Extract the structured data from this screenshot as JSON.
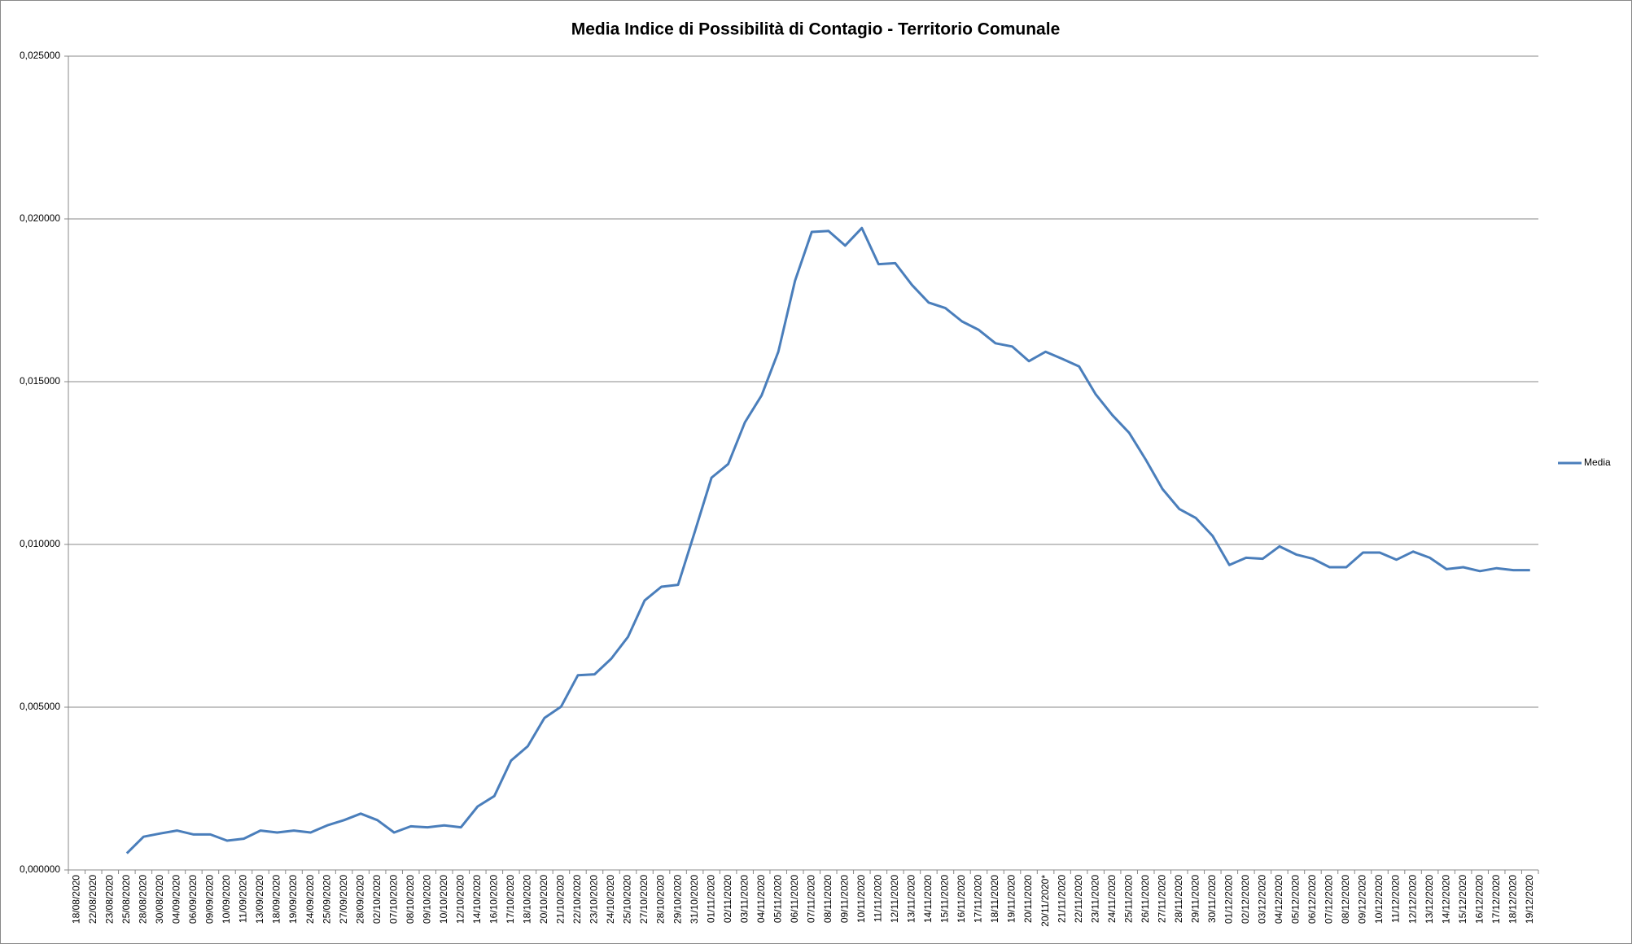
{
  "chart_data": {
    "type": "line",
    "title": "Media Indice di Possibilità di Contagio - Territorio Comunale",
    "categories": [
      "18/08/2020",
      "22/08/2020",
      "23/08/2020",
      "25/08/2020",
      "28/08/2020",
      "30/08/2020",
      "04/09/2020",
      "06/09/2020",
      "09/09/2020",
      "10/09/2020",
      "11/09/2020",
      "13/09/2020",
      "18/09/2020",
      "19/09/2020",
      "24/09/2020",
      "25/09/2020",
      "27/09/2020",
      "28/09/2020",
      "02/10/2020",
      "07/10/2020",
      "08/10/2020",
      "09/10/2020",
      "10/10/2020",
      "12/10/2020",
      "14/10/2020",
      "16/10/2020",
      "17/10/2020",
      "18/10/2020",
      "20/10/2020",
      "21/10/2020",
      "22/10/2020",
      "23/10/2020",
      "24/10/2020",
      "25/10/2020",
      "27/10/2020",
      "28/10/2020",
      "29/10/2020",
      "31/10/2020",
      "01/11/2020",
      "02/11/2020",
      "03/11/2020",
      "04/11/2020",
      "05/11/2020",
      "06/11/2020",
      "07/11/2020",
      "08/11/2020",
      "09/11/2020",
      "10/11/2020",
      "11/11/2020",
      "12/11/2020",
      "13/11/2020",
      "14/11/2020",
      "15/11/2020",
      "16/11/2020",
      "17/11/2020",
      "18/11/2020",
      "19/11/2020",
      "20/11/2020",
      "20/11/2020*",
      "21/11/2020",
      "22/11/2020",
      "23/11/2020",
      "24/11/2020",
      "25/11/2020",
      "26/11/2020",
      "27/11/2020",
      "28/11/2020",
      "29/11/2020",
      "30/11/2020",
      "01/12/2020",
      "02/12/2020",
      "03/12/2020",
      "04/12/2020",
      "05/12/2020",
      "06/12/2020",
      "07/12/2020",
      "08/12/2020",
      "09/12/2020",
      "10/12/2020",
      "11/12/2020",
      "12/12/2020",
      "13/12/2020",
      "14/12/2020",
      "15/12/2020",
      "16/12/2020",
      "17/12/2020",
      "18/12/2020",
      "19/12/2020"
    ],
    "series": [
      {
        "name": "Media",
        "color": "#4a7ebb",
        "values": [
          null,
          null,
          null,
          0.00051,
          0.00102,
          0.00112,
          0.00121,
          0.00109,
          0.00109,
          0.0009,
          0.00096,
          0.00121,
          0.00115,
          0.00121,
          0.00115,
          0.00137,
          0.00153,
          0.00173,
          0.00153,
          0.00115,
          0.00134,
          0.00131,
          0.00137,
          0.00131,
          0.00195,
          0.00227,
          0.00336,
          0.0038,
          0.00467,
          0.00502,
          0.00598,
          0.00601,
          0.00649,
          0.00716,
          0.00828,
          0.0087,
          0.00876,
          0.01039,
          0.01205,
          0.01247,
          0.01375,
          0.01458,
          0.01592,
          0.0181,
          0.0196,
          0.01963,
          0.01918,
          0.01972,
          0.01861,
          0.01864,
          0.01797,
          0.01743,
          0.01726,
          0.01685,
          0.01659,
          0.01618,
          0.01608,
          0.01563,
          0.01592,
          0.0157,
          0.01547,
          0.01461,
          0.01397,
          0.01343,
          0.0126,
          0.0117,
          0.01109,
          0.01081,
          0.01026,
          0.00937,
          0.00959,
          0.00956,
          0.00994,
          0.00969,
          0.00956,
          0.0093,
          0.0093,
          0.00975,
          0.00975,
          0.00953,
          0.00978,
          0.00959,
          0.00924,
          0.0093,
          0.00918,
          0.00927,
          0.00921,
          0.00921
        ]
      }
    ],
    "ylim": [
      0,
      0.025
    ],
    "yticks": [
      {
        "value": 0,
        "label": "0,000000"
      },
      {
        "value": 0.005,
        "label": "0,005000"
      },
      {
        "value": 0.01,
        "label": "0,010000"
      },
      {
        "value": 0.015,
        "label": "0,015000"
      },
      {
        "value": 0.02,
        "label": "0,020000"
      },
      {
        "value": 0.025,
        "label": "0,025000"
      }
    ],
    "grid": true,
    "legend": "right"
  }
}
